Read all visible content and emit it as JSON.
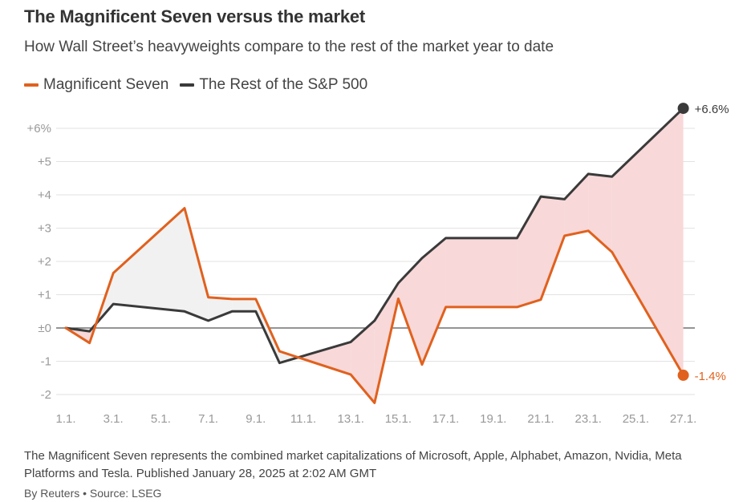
{
  "title": "The Magnificent Seven versus the market",
  "subtitle": "How Wall Street’s heavyweights compare to the rest of the market year to date",
  "footnote": "The Magnificent Seven represents the combined market capitalizations of Microsoft, Apple, Alphabet, Amazon, Nvidia, Meta Platforms and Tesla. Published January 28, 2025 at 2:02 AM GMT",
  "credit": "By Reuters • Source: LSEG",
  "chart_data": {
    "type": "line",
    "title": "The Magnificent Seven versus the market",
    "xlabel": "",
    "ylabel": "",
    "ylim": [
      -2,
      6
    ],
    "grid": true,
    "legend": "top-left",
    "y_ticks": [
      {
        "value": 6,
        "label": "+6%"
      },
      {
        "value": 5,
        "label": "+5"
      },
      {
        "value": 4,
        "label": "+4"
      },
      {
        "value": 3,
        "label": "+3"
      },
      {
        "value": 2,
        "label": "+2"
      },
      {
        "value": 1,
        "label": "+1"
      },
      {
        "value": 0,
        "label": "±0"
      },
      {
        "value": -1,
        "label": "-1"
      },
      {
        "value": -2,
        "label": "-2"
      }
    ],
    "x_ticks": [
      "1.1.",
      "3.1.",
      "5.1.",
      "7.1.",
      "9.1.",
      "11.1.",
      "13.1.",
      "15.1.",
      "17.1.",
      "19.1.",
      "21.1.",
      "23.1.",
      "25.1.",
      "27.1."
    ],
    "series": [
      {
        "name": "Magnificent Seven",
        "color": "#e0611e",
        "end_label": "-1.4%",
        "points": [
          [
            1,
            0
          ],
          [
            2,
            -0.45
          ],
          [
            3,
            1.65
          ],
          [
            6,
            3.6
          ],
          [
            7,
            0.92
          ],
          [
            8,
            0.87
          ],
          [
            9,
            0.87
          ],
          [
            10,
            -0.7
          ],
          [
            13,
            -1.4
          ],
          [
            14,
            -2.25
          ],
          [
            15,
            0.88
          ],
          [
            16,
            -1.1
          ],
          [
            17,
            0.63
          ],
          [
            20,
            0.63
          ],
          [
            21,
            0.85
          ],
          [
            22,
            2.77
          ],
          [
            23,
            2.92
          ],
          [
            24,
            2.28
          ],
          [
            27,
            -1.42
          ]
        ]
      },
      {
        "name": "The Rest of the S&P 500",
        "color": "#3a3a3a",
        "end_label": "+6.6%",
        "points": [
          [
            1,
            0
          ],
          [
            2,
            -0.1
          ],
          [
            3,
            0.72
          ],
          [
            6,
            0.5
          ],
          [
            7,
            0.22
          ],
          [
            8,
            0.5
          ],
          [
            9,
            0.5
          ],
          [
            10,
            -1.05
          ],
          [
            13,
            -0.42
          ],
          [
            14,
            0.22
          ],
          [
            15,
            1.35
          ],
          [
            16,
            2.1
          ],
          [
            17,
            2.7
          ],
          [
            20,
            2.7
          ],
          [
            21,
            3.95
          ],
          [
            22,
            3.87
          ],
          [
            23,
            4.63
          ],
          [
            24,
            4.55
          ],
          [
            27,
            6.6
          ]
        ]
      }
    ],
    "fill_colors": {
      "mag7_ahead": "#f1f1f1",
      "rest_ahead": "#f8d8d8"
    }
  }
}
